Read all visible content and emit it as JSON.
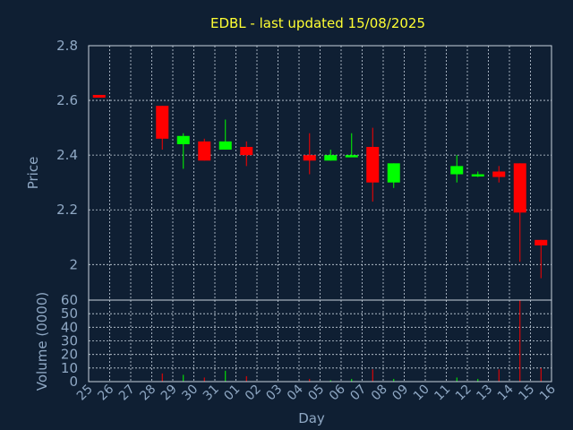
{
  "chart_data": {
    "type": "candlestick",
    "title": "EDBL - last updated 15/08/2025",
    "xlabel": "Day",
    "ylabel": "Price",
    "volume_label": "Volume (0000)",
    "ylim": [
      1.87,
      2.8
    ],
    "vlim": [
      0,
      60
    ],
    "price_ticks": [
      "2.8",
      "2.6",
      "2.4",
      "2.2",
      "2"
    ],
    "price_tick_values": [
      2.8,
      2.6,
      2.4,
      2.2,
      2.0
    ],
    "volume_ticks": [
      "60",
      "50",
      "40",
      "30",
      "20",
      "10",
      "0"
    ],
    "volume_tick_values": [
      60,
      50,
      40,
      30,
      20,
      10,
      0
    ],
    "days": [
      "25",
      "26",
      "27",
      "28",
      "29",
      "30",
      "31",
      "01",
      "02",
      "03",
      "04",
      "05",
      "06",
      "07",
      "08",
      "09",
      "10",
      "11",
      "12",
      "13",
      "14",
      "15",
      "16"
    ],
    "grid": true,
    "colors": {
      "up": "#00ff00",
      "down": "#ff0000",
      "title": "#ffff33",
      "axis_text": "#8fa8c4",
      "background": "#0f1f33"
    },
    "candles": [
      {
        "day": "25",
        "open": 2.62,
        "high": 2.62,
        "low": 2.61,
        "close": 2.61,
        "volume": 0
      },
      {
        "day": "28",
        "open": 2.58,
        "high": 2.58,
        "low": 2.42,
        "close": 2.46,
        "volume": 6
      },
      {
        "day": "29",
        "open": 2.44,
        "high": 2.48,
        "low": 2.35,
        "close": 2.47,
        "volume": 5
      },
      {
        "day": "30",
        "open": 2.45,
        "high": 2.46,
        "low": 2.38,
        "close": 2.38,
        "volume": 3
      },
      {
        "day": "31",
        "open": 2.42,
        "high": 2.53,
        "low": 2.42,
        "close": 2.45,
        "volume": 8
      },
      {
        "day": "01",
        "open": 2.43,
        "high": 2.45,
        "low": 2.36,
        "close": 2.4,
        "volume": 4
      },
      {
        "day": "04",
        "open": 2.4,
        "high": 2.48,
        "low": 2.33,
        "close": 2.38,
        "volume": 2
      },
      {
        "day": "05",
        "open": 2.38,
        "high": 2.42,
        "low": 2.38,
        "close": 2.4,
        "volume": 1
      },
      {
        "day": "06",
        "open": 2.4,
        "high": 2.48,
        "low": 2.4,
        "close": 2.4,
        "volume": 2
      },
      {
        "day": "07",
        "open": 2.43,
        "high": 2.5,
        "low": 2.23,
        "close": 2.3,
        "volume": 9
      },
      {
        "day": "08",
        "open": 2.3,
        "high": 2.37,
        "low": 2.28,
        "close": 2.37,
        "volume": 2
      },
      {
        "day": "11",
        "open": 2.33,
        "high": 2.4,
        "low": 2.3,
        "close": 2.36,
        "volume": 3
      },
      {
        "day": "12",
        "open": 2.33,
        "high": 2.34,
        "low": 2.32,
        "close": 2.33,
        "volume": 2
      },
      {
        "day": "13",
        "open": 2.34,
        "high": 2.36,
        "low": 2.3,
        "close": 2.32,
        "volume": 9
      },
      {
        "day": "14",
        "open": 2.37,
        "high": 2.37,
        "low": 2.01,
        "close": 2.19,
        "volume": 60
      },
      {
        "day": "15",
        "open": 2.09,
        "high": 2.09,
        "low": 1.95,
        "close": 2.07,
        "volume": 10
      }
    ]
  }
}
